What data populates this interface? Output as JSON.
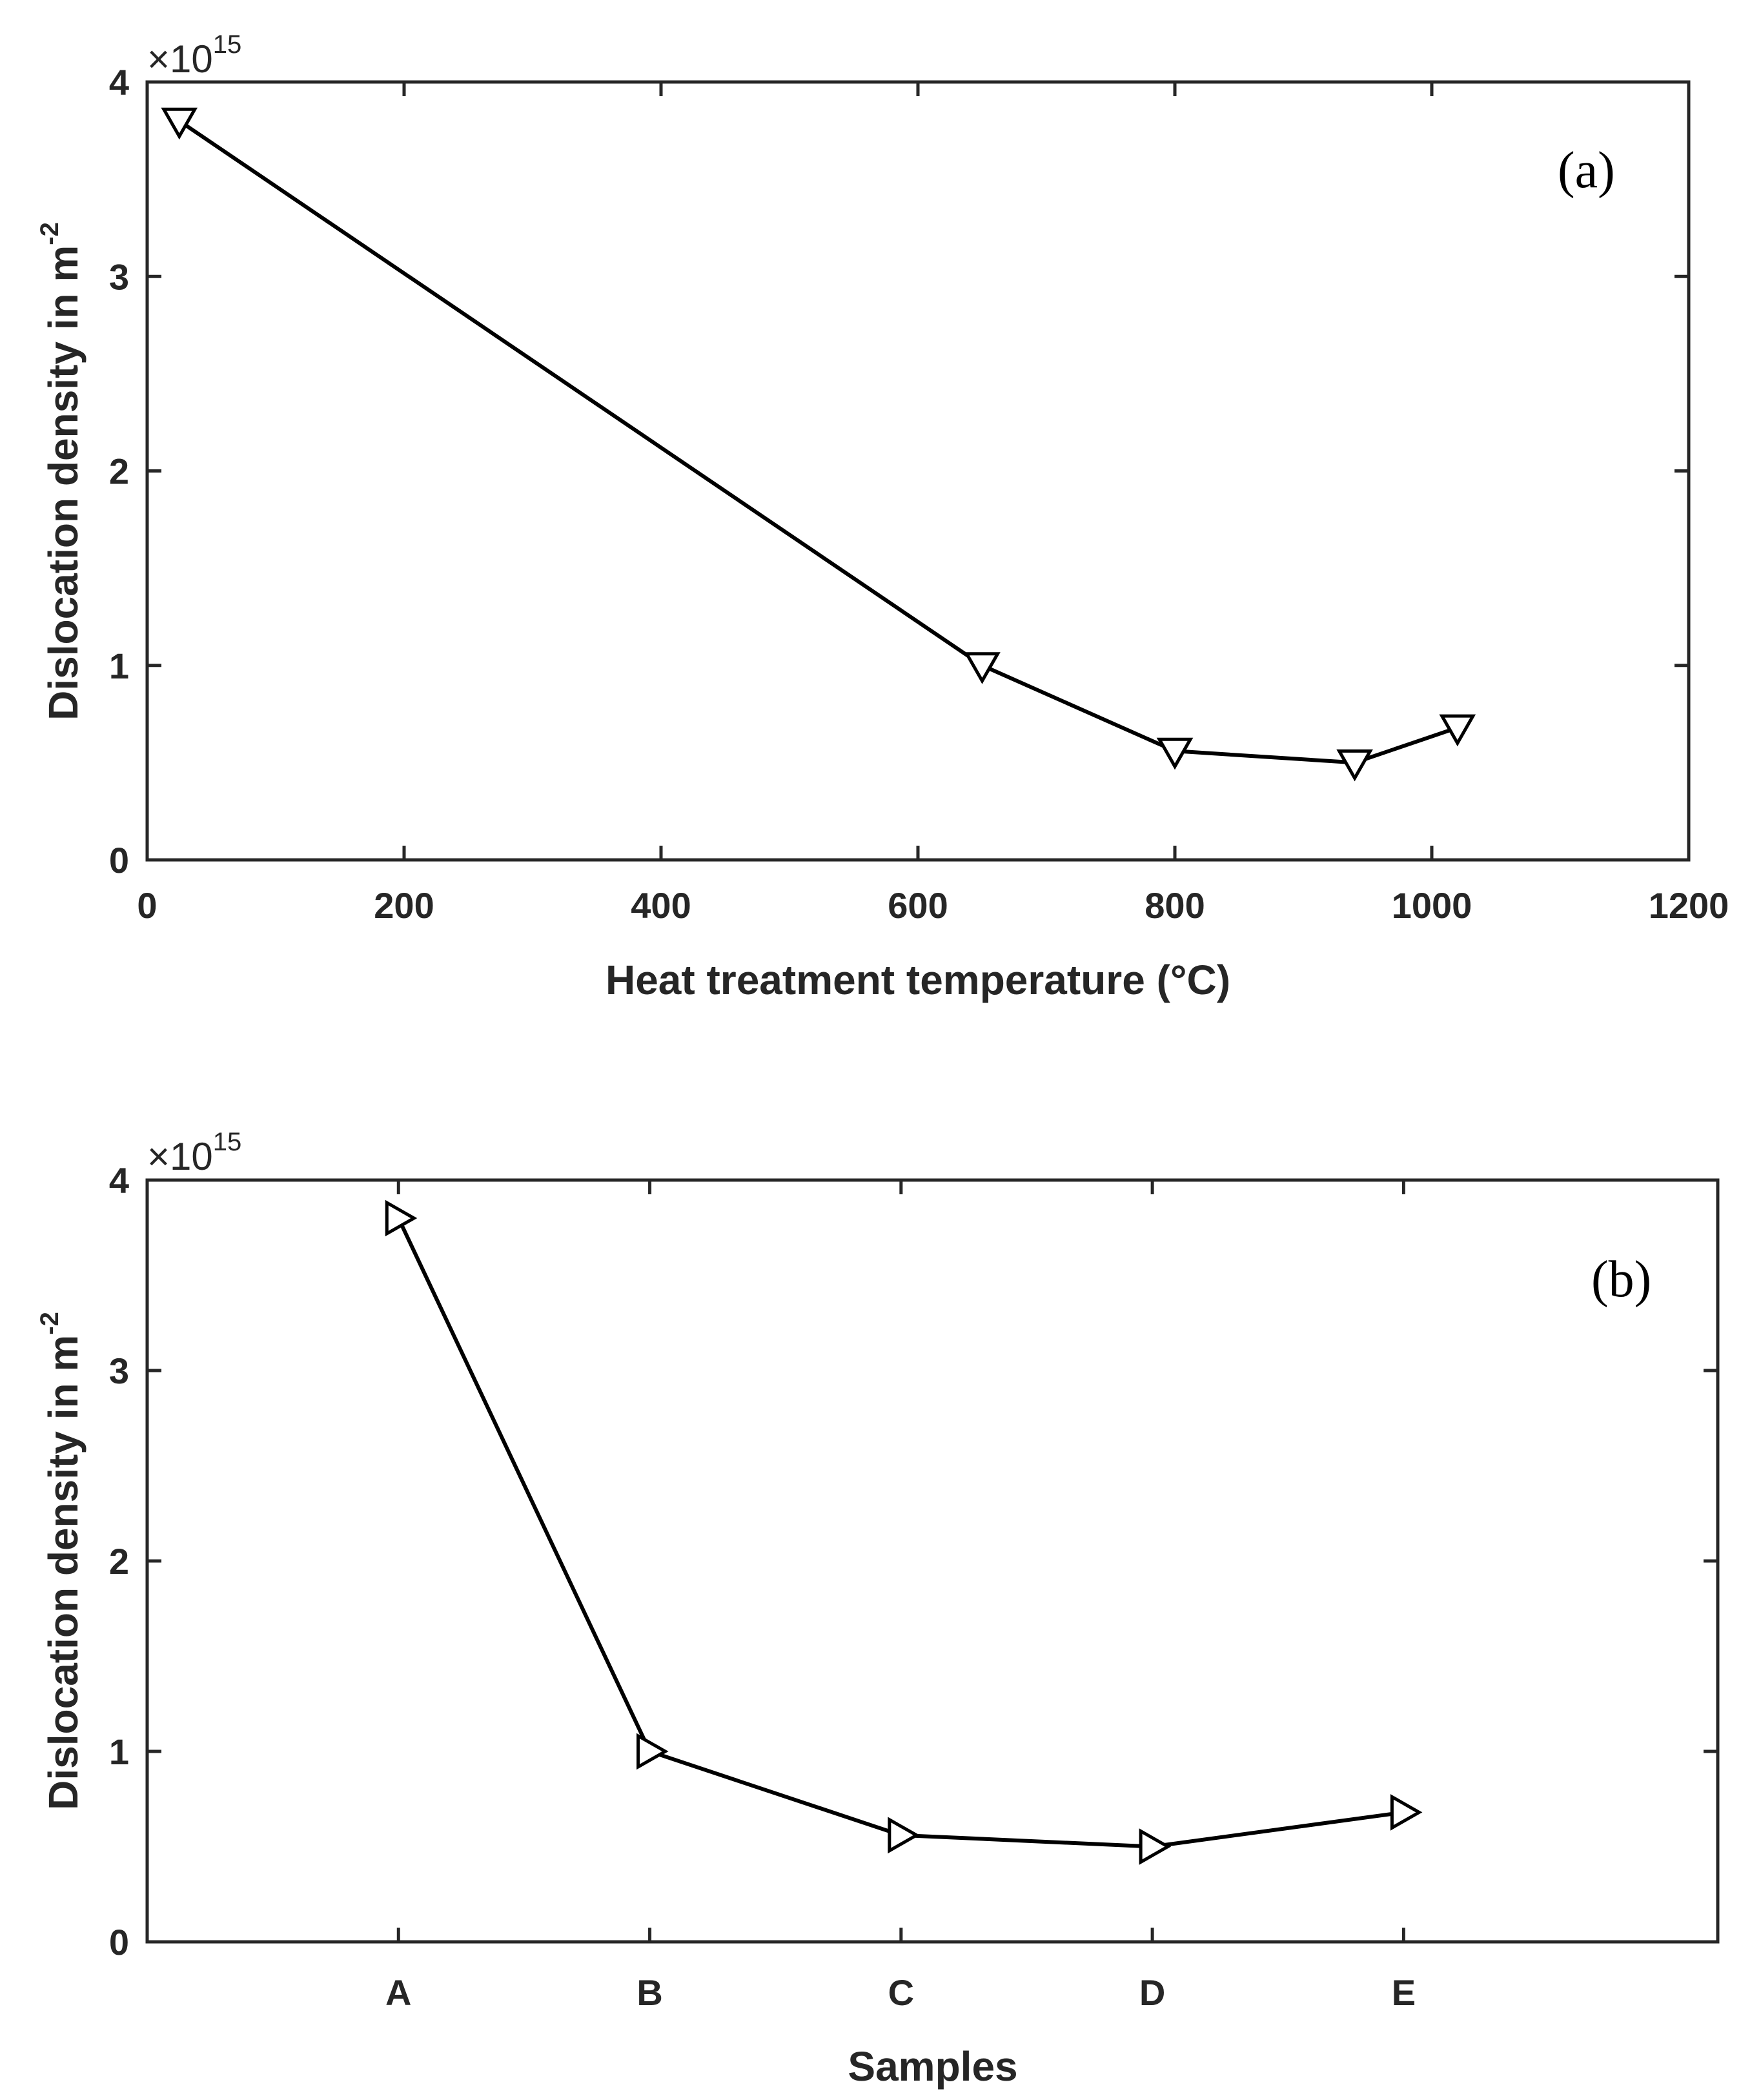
{
  "chart_data": [
    {
      "type": "line",
      "panel_label": "(a)",
      "xlabel": "Heat treatment temperature (°C)",
      "ylabel": "Dislocation density in m",
      "ylabel_superscript": "-2",
      "y_multiplier": "×10",
      "y_multiplier_exponent": "15",
      "xlim": [
        0,
        1200
      ],
      "ylim": [
        0,
        4
      ],
      "xticks": [
        "0",
        "200",
        "400",
        "600",
        "800",
        "1000",
        "1200"
      ],
      "yticks": [
        "0",
        "1",
        "2",
        "3",
        "4"
      ],
      "marker": "triangle-down",
      "line_color": "#000000",
      "grid": false,
      "x": [
        25,
        650,
        800,
        940,
        1020
      ],
      "y": [
        3.8,
        1.0,
        0.56,
        0.5,
        0.68
      ]
    },
    {
      "type": "line",
      "panel_label": "(b)",
      "xlabel": "Samples",
      "ylabel": "Dislocation density in m",
      "ylabel_superscript": "-2",
      "y_multiplier": "×10",
      "y_multiplier_exponent": "15",
      "ylim": [
        0,
        4
      ],
      "categories": [
        "A",
        "B",
        "C",
        "D",
        "E"
      ],
      "yticks": [
        "0",
        "1",
        "2",
        "3",
        "4"
      ],
      "marker": "triangle-right",
      "line_color": "#000000",
      "grid": false,
      "values": [
        3.8,
        1.0,
        0.56,
        0.5,
        0.68
      ]
    }
  ]
}
